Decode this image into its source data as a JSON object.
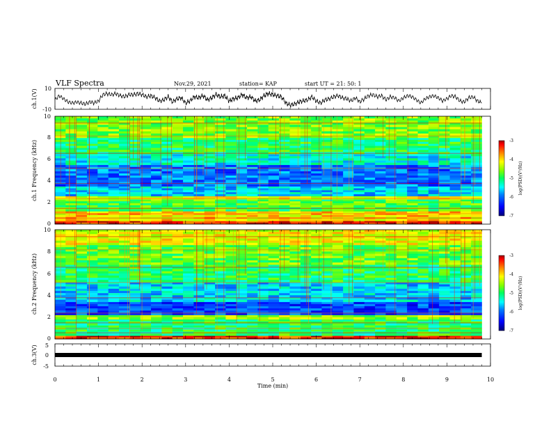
{
  "header": {
    "title": "VLF Spectra",
    "date": "Nov.29, 2021",
    "station": "station= KAP",
    "start": "start  UT  =   21: 50: 1"
  },
  "colors": {
    "scale": [
      "#00007a",
      "#0000ff",
      "#0080ff",
      "#00ffff",
      "#00ff80",
      "#00ff00",
      "#80ff00",
      "#ffff00",
      "#ff8000",
      "#ff0000",
      "#a00000"
    ],
    "axis": "#000000",
    "trace": "#000000"
  },
  "chart_data": [
    {
      "type": "line",
      "panel": "ch1-waveform",
      "ylabel": "ch.1(V)",
      "ylim": [
        -10,
        10
      ],
      "yticks": [
        "10",
        "-10"
      ],
      "xlim": [
        0,
        10
      ],
      "series": [
        {
          "x": [
            0,
            0.1,
            0.2,
            0.3,
            0.4,
            0.5,
            0.6,
            0.7,
            0.8,
            0.9,
            1.0,
            1.1,
            1.2,
            1.3,
            1.4,
            1.5,
            1.6,
            1.7,
            1.8,
            1.9,
            2.0,
            2.1,
            2.2,
            2.3,
            2.4,
            2.5,
            2.6,
            2.7,
            2.8,
            2.9,
            3.0,
            3.1,
            3.2,
            3.3,
            3.4,
            3.5,
            3.6,
            3.7,
            3.8,
            3.9,
            4.0,
            4.1,
            4.2,
            4.3,
            4.4,
            4.5,
            4.6,
            4.7,
            4.8,
            4.9,
            5.0,
            5.1,
            5.2,
            5.3,
            5.4,
            5.5,
            5.6,
            5.7,
            5.8,
            5.9,
            6.0,
            6.1,
            6.2,
            6.3,
            6.4,
            6.5,
            6.6,
            6.7,
            6.8,
            6.9,
            7.0,
            7.1,
            7.2,
            7.3,
            7.4,
            7.5,
            7.6,
            7.7,
            7.8,
            7.9,
            8.0,
            8.1,
            8.2,
            8.3,
            8.4,
            8.5,
            8.6,
            8.7,
            8.8,
            8.9,
            9.0,
            9.1,
            9.2,
            9.3,
            9.4,
            9.5,
            9.6,
            9.7,
            9.8
          ],
          "y": [
            -1,
            3,
            0,
            -3,
            -4,
            -3,
            -4,
            -5,
            -3,
            -4,
            -2,
            4,
            5,
            4,
            5,
            3,
            2,
            4,
            4,
            5,
            4,
            2,
            3,
            1,
            -2,
            -1,
            2,
            -3,
            0,
            1,
            -4,
            -2,
            2,
            1,
            3,
            -1,
            1,
            4,
            2,
            3,
            -2,
            0,
            1,
            4,
            1,
            2,
            -2,
            -1,
            3,
            5,
            4,
            3,
            2,
            -4,
            -6,
            -5,
            -3,
            -2,
            -1,
            2,
            -2,
            -4,
            -1,
            0,
            2,
            3,
            1,
            0,
            -2,
            1,
            -3,
            0,
            3,
            4,
            2,
            3,
            -1,
            2,
            1,
            -2,
            1,
            3,
            2,
            -1,
            -4,
            0,
            2,
            3,
            1,
            -2,
            0,
            3,
            2,
            -2,
            -3,
            1,
            2,
            -2,
            -4
          ]
        }
      ]
    },
    {
      "type": "heatmap",
      "panel": "ch1-spectrogram",
      "ylabel": "ch.1 Frequency (kHz)",
      "ylim": [
        0,
        10
      ],
      "yticks": [
        "0",
        "2",
        "4",
        "6",
        "8",
        "10"
      ],
      "xlim": [
        0,
        10
      ],
      "colorbar": {
        "label": "log(PSD)(V²/Hz)",
        "range": [
          -7,
          -3
        ],
        "ticks": [
          "-3",
          "-4",
          "-5",
          "-6",
          "-7"
        ]
      },
      "bands_khz": [
        {
          "from": 0,
          "to": 0.3,
          "level": -3.3
        },
        {
          "from": 0.3,
          "to": 1.2,
          "level": -4.0
        },
        {
          "from": 1.2,
          "to": 2.3,
          "level": -4.8
        },
        {
          "from": 2.3,
          "to": 2.6,
          "level": -4.2
        },
        {
          "from": 2.6,
          "to": 3.5,
          "level": -5.6
        },
        {
          "from": 3.5,
          "to": 5.5,
          "level": -6.0
        },
        {
          "from": 5.5,
          "to": 6.5,
          "level": -5.4
        },
        {
          "from": 6.5,
          "to": 8.0,
          "level": -5.0
        },
        {
          "from": 8.0,
          "to": 10,
          "level": -4.6
        }
      ]
    },
    {
      "type": "heatmap",
      "panel": "ch2-spectrogram",
      "ylabel": "ch.2 Frequency (kHz)",
      "ylim": [
        0,
        10
      ],
      "yticks": [
        "0",
        "2",
        "4",
        "6",
        "8",
        "10"
      ],
      "xlim": [
        0,
        10
      ],
      "colorbar": {
        "label": "log(PSD)(V²/Hz)",
        "range": [
          -7,
          -3
        ],
        "ticks": [
          "-3",
          "-4",
          "-5",
          "-6",
          "-7"
        ]
      },
      "bands_khz": [
        {
          "from": 0,
          "to": 0.3,
          "level": -3.3
        },
        {
          "from": 0.3,
          "to": 1.8,
          "level": -5.0
        },
        {
          "from": 1.8,
          "to": 2.2,
          "level": -4.5
        },
        {
          "from": 2.2,
          "to": 3.4,
          "level": -6.2
        },
        {
          "from": 3.4,
          "to": 5.2,
          "level": -5.6
        },
        {
          "from": 5.2,
          "to": 6.8,
          "level": -5.0
        },
        {
          "from": 6.8,
          "to": 8.6,
          "level": -4.7
        },
        {
          "from": 8.6,
          "to": 10,
          "level": -4.2
        }
      ]
    },
    {
      "type": "line",
      "panel": "ch3-waveform",
      "ylabel": "ch.3(V)",
      "ylim": [
        -5,
        5
      ],
      "yticks": [
        "5",
        "0",
        "-5"
      ],
      "xlim": [
        0,
        10
      ],
      "xlabel": "Time  (min)",
      "xticks": [
        "0",
        "1",
        "2",
        "3",
        "4",
        "5",
        "6",
        "7",
        "8",
        "9",
        "10"
      ],
      "series": [
        {
          "x": [
            0,
            9.8
          ],
          "y": [
            0,
            0
          ]
        }
      ]
    }
  ]
}
